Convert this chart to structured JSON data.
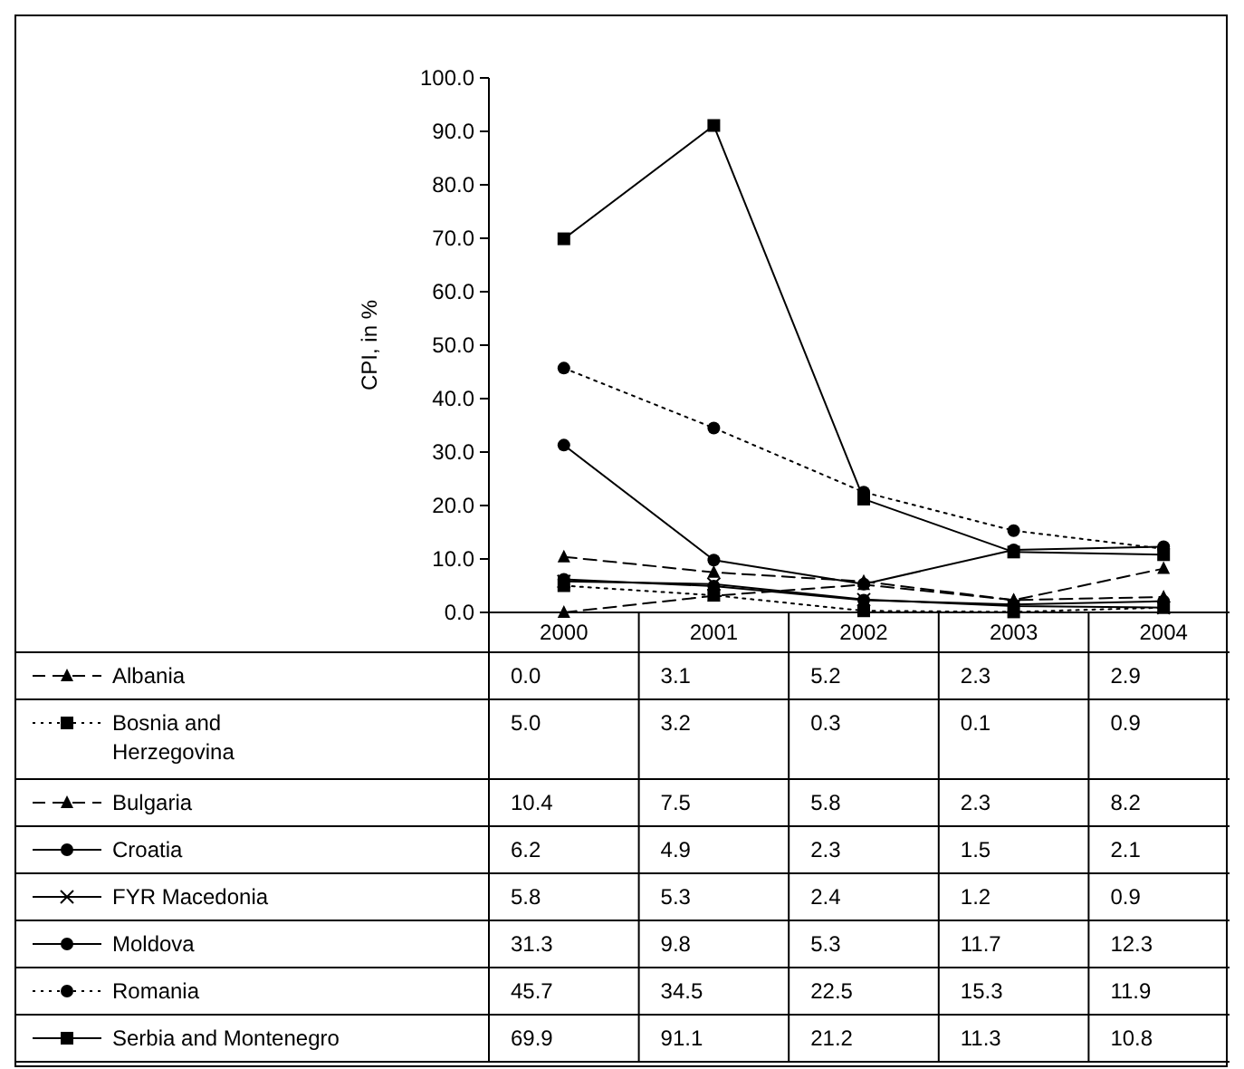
{
  "chart_data": {
    "type": "line",
    "ylabel": "CPI, in %",
    "categories": [
      "2000",
      "2001",
      "2002",
      "2003",
      "2004"
    ],
    "ylim": [
      0,
      100
    ],
    "yticks": [
      {
        "value": 0,
        "label": "0.0"
      },
      {
        "value": 10,
        "label": "10.0"
      },
      {
        "value": 20,
        "label": "20.0"
      },
      {
        "value": 30,
        "label": "30.0"
      },
      {
        "value": 40,
        "label": "40.0"
      },
      {
        "value": 50,
        "label": "50.0"
      },
      {
        "value": 60,
        "label": "60.0"
      },
      {
        "value": 70,
        "label": "70.0"
      },
      {
        "value": 80,
        "label": "80.0"
      },
      {
        "value": 90,
        "label": "90.0"
      },
      {
        "value": 100,
        "label": "100.0"
      }
    ],
    "grid": false,
    "legend": "bottom",
    "series": [
      {
        "name": "Albania",
        "color": "#000000",
        "line_style": "dashed",
        "marker": "triangle",
        "values": [
          0.0,
          3.1,
          5.2,
          2.3,
          2.9
        ],
        "value_labels": [
          "0.0",
          "3.1",
          "5.2",
          "2.3",
          "2.9"
        ]
      },
      {
        "name": "Bosnia and Herzegovina",
        "color": "#000000",
        "line_style": "dotted",
        "marker": "square",
        "values": [
          5.0,
          3.2,
          0.3,
          0.1,
          0.9
        ],
        "value_labels": [
          "5.0",
          "3.2",
          "0.3",
          "0.1",
          "0.9"
        ]
      },
      {
        "name": "Bulgaria",
        "color": "#000000",
        "line_style": "dashed",
        "marker": "triangle",
        "values": [
          10.4,
          7.5,
          5.8,
          2.3,
          8.2
        ],
        "value_labels": [
          "10.4",
          "7.5",
          "5.8",
          "2.3",
          "8.2"
        ]
      },
      {
        "name": "Croatia",
        "color": "#000000",
        "line_style": "solid",
        "marker": "circle",
        "values": [
          6.2,
          4.9,
          2.3,
          1.5,
          2.1
        ],
        "value_labels": [
          "6.2",
          "4.9",
          "2.3",
          "1.5",
          "2.1"
        ]
      },
      {
        "name": "FYR Macedonia",
        "color": "#000000",
        "line_style": "solid",
        "marker": "cross",
        "values": [
          5.8,
          5.3,
          2.4,
          1.2,
          0.9
        ],
        "value_labels": [
          "5.8",
          "5.3",
          "2.4",
          "1.2",
          "0.9"
        ]
      },
      {
        "name": "Moldova",
        "color": "#000000",
        "line_style": "solid",
        "marker": "circle",
        "values": [
          31.3,
          9.8,
          5.3,
          11.7,
          12.3
        ],
        "value_labels": [
          "31.3",
          "9.8",
          "5.3",
          "11.7",
          "12.3"
        ]
      },
      {
        "name": "Romania",
        "color": "#000000",
        "line_style": "dotted",
        "marker": "circle",
        "values": [
          45.7,
          34.5,
          22.5,
          15.3,
          11.9
        ],
        "value_labels": [
          "45.7",
          "34.5",
          "22.5",
          "15.3",
          "11.9"
        ]
      },
      {
        "name": "Serbia and Montenegro",
        "color": "#000000",
        "line_style": "solid",
        "marker": "square",
        "values": [
          69.9,
          91.1,
          21.2,
          11.3,
          10.8
        ],
        "value_labels": [
          "69.9",
          "91.1",
          "21.2",
          "11.3",
          "10.8"
        ]
      }
    ]
  }
}
